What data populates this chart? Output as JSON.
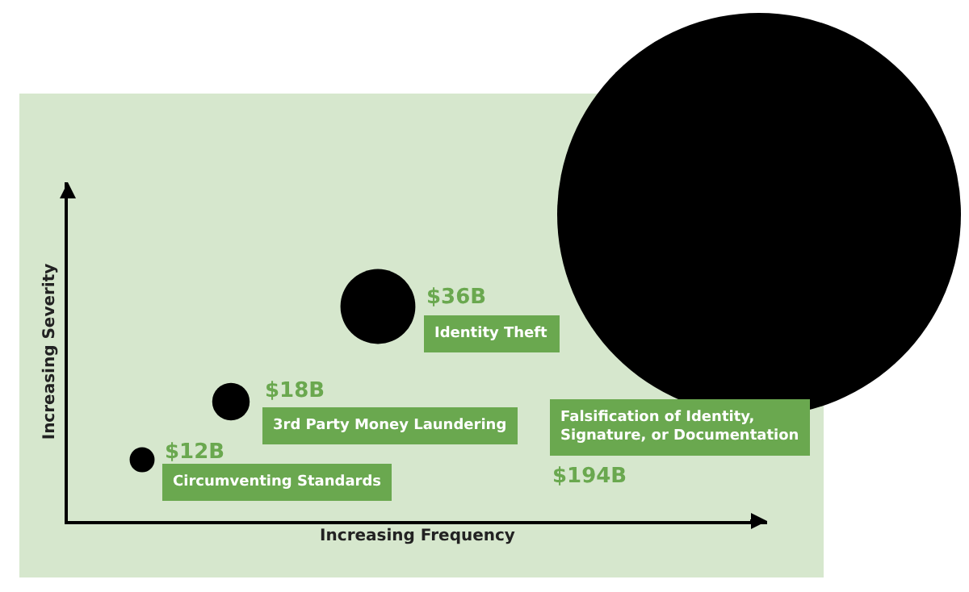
{
  "chart_data": {
    "type": "other",
    "xlabel": "Increasing Frequency",
    "ylabel": "Increasing Severity",
    "color": "#000000",
    "categories": [
      "Circumventing Standards",
      "3rd Party Money Laundering",
      "Identity Theft",
      "Falsification of Identity,\nSignature, or Documentation"
    ],
    "values": [
      12,
      18,
      36,
      194
    ],
    "value_labels": [
      "$12B",
      "$18B",
      "$36B",
      "$194B"
    ]
  }
}
